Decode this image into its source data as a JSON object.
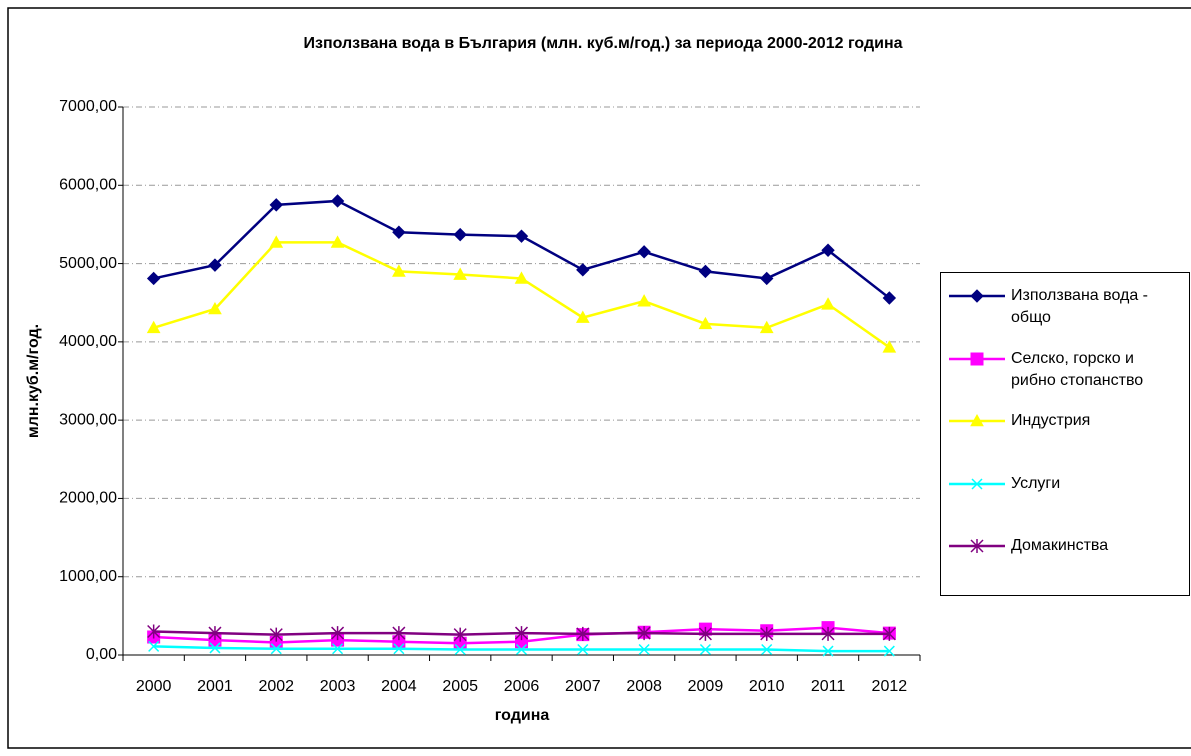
{
  "chart_data": {
    "type": "line",
    "title": "Използвана вода в България (млн. куб.м/год.) за периода 2000-2012 година",
    "x_label": "година",
    "y_label": "млн.куб.м/год.",
    "categories": [
      "2000",
      "2001",
      "2002",
      "2003",
      "2004",
      "2005",
      "2006",
      "2007",
      "2008",
      "2009",
      "2010",
      "2011",
      "2012"
    ],
    "series": [
      {
        "name": "Използвана вода - общо",
        "color": "#000080",
        "marker": "diamond",
        "values": [
          4810,
          4980,
          5750,
          5800,
          5400,
          5370,
          5350,
          4920,
          5150,
          4900,
          4810,
          5170,
          4560
        ]
      },
      {
        "name": "Селско, горско и рибно стопанство",
        "color": "#ff00ff",
        "marker": "square",
        "values": [
          230,
          190,
          160,
          190,
          170,
          150,
          170,
          260,
          290,
          330,
          310,
          350,
          280
        ]
      },
      {
        "name": "Индустрия",
        "color": "#ffff00",
        "marker": "triangle",
        "values": [
          4180,
          4420,
          5270,
          5270,
          4900,
          4860,
          4810,
          4310,
          4520,
          4230,
          4180,
          4480,
          3930
        ]
      },
      {
        "name": "Услуги",
        "color": "#00ffff",
        "marker": "x",
        "values": [
          110,
          90,
          80,
          80,
          80,
          70,
          70,
          70,
          70,
          70,
          70,
          50,
          50
        ]
      },
      {
        "name": "Домакинства",
        "color": "#800080",
        "marker": "star",
        "values": [
          300,
          280,
          260,
          280,
          280,
          260,
          280,
          270,
          280,
          270,
          270,
          270,
          270
        ]
      }
    ],
    "ylim": [
      0,
      7000
    ],
    "yticks": [
      {
        "value": 0,
        "label": "0,00"
      },
      {
        "value": 1000,
        "label": "1000,00"
      },
      {
        "value": 2000,
        "label": "2000,00"
      },
      {
        "value": 3000,
        "label": "3000,00"
      },
      {
        "value": 4000,
        "label": "4000,00"
      },
      {
        "value": 5000,
        "label": "5000,00"
      },
      {
        "value": 6000,
        "label": "6000,00"
      },
      {
        "value": 7000,
        "label": "7000,00"
      }
    ],
    "grid": true
  }
}
